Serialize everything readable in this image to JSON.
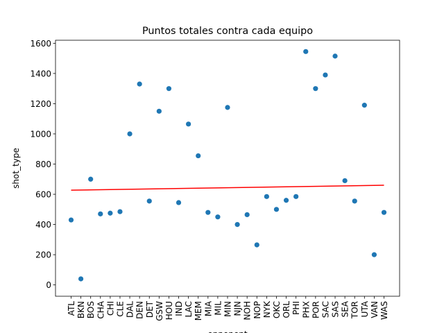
{
  "chart_data": {
    "type": "scatter",
    "title": "Puntos totales contra cada equipo",
    "xlabel": "opponent",
    "ylabel": "shot_type",
    "categories": [
      "ATL",
      "BKN",
      "BOS",
      "CHA",
      "CHI",
      "CLE",
      "DAL",
      "DEN",
      "DET",
      "GSW",
      "HOU",
      "IND",
      "LAC",
      "MEM",
      "MIA",
      "MIL",
      "MIN",
      "NJN",
      "NOH",
      "NOP",
      "NYK",
      "OKC",
      "ORL",
      "PHI",
      "PHX",
      "POR",
      "SAC",
      "SAS",
      "SEA",
      "TOR",
      "UTA",
      "VAN",
      "WAS"
    ],
    "values": [
      430,
      40,
      700,
      470,
      475,
      485,
      1000,
      1330,
      555,
      1150,
      1300,
      545,
      1065,
      855,
      480,
      450,
      1175,
      400,
      465,
      265,
      585,
      500,
      560,
      585,
      1545,
      1300,
      1390,
      1515,
      690,
      555,
      1190,
      200,
      480
    ],
    "trendline": {
      "start": 627,
      "end": 660,
      "color": "#ff0000"
    },
    "point_color": "#1f77b4",
    "ylim": [
      -75,
      1620
    ],
    "yticks": [
      0,
      200,
      400,
      600,
      800,
      1000,
      1200,
      1400,
      1600
    ],
    "grid": false,
    "legend": "none"
  }
}
